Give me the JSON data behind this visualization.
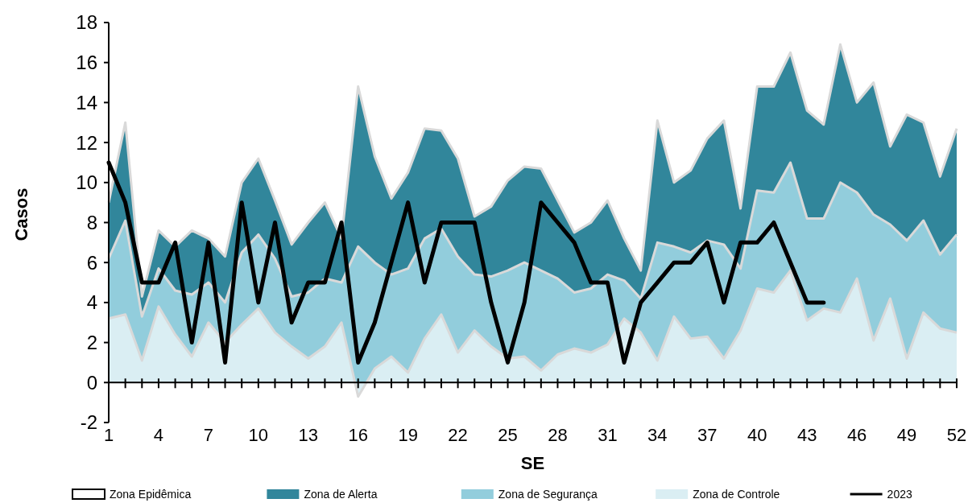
{
  "chart_data": {
    "type": "area",
    "xlabel": "SE",
    "ylabel": "Casos",
    "x": [
      1,
      2,
      3,
      4,
      5,
      6,
      7,
      8,
      9,
      10,
      11,
      12,
      13,
      14,
      15,
      16,
      17,
      18,
      19,
      20,
      21,
      22,
      23,
      24,
      25,
      26,
      27,
      28,
      29,
      30,
      31,
      32,
      33,
      34,
      35,
      36,
      37,
      38,
      39,
      40,
      41,
      42,
      43,
      44,
      45,
      46,
      47,
      48,
      49,
      50,
      51,
      52
    ],
    "xlim": [
      1,
      52
    ],
    "xticks": [
      1,
      {
        "value": 2,
        "label": null
      },
      {
        "value": 3,
        "label": null
      },
      4,
      {
        "value": 5,
        "label": null
      },
      {
        "value": 6,
        "label": null
      },
      7,
      {
        "value": 8,
        "label": null
      },
      {
        "value": 9,
        "label": null
      },
      10,
      {
        "value": 11,
        "label": null
      },
      {
        "value": 12,
        "label": null
      },
      13,
      {
        "value": 14,
        "label": null
      },
      {
        "value": 15,
        "label": null
      },
      16,
      {
        "value": 17,
        "label": null
      },
      {
        "value": 18,
        "label": null
      },
      19,
      {
        "value": 20,
        "label": null
      },
      {
        "value": 21,
        "label": null
      },
      22,
      {
        "value": 23,
        "label": null
      },
      {
        "value": 24,
        "label": null
      },
      25,
      {
        "value": 26,
        "label": null
      },
      {
        "value": 27,
        "label": null
      },
      28,
      {
        "value": 29,
        "label": null
      },
      {
        "value": 30,
        "label": null
      },
      31,
      {
        "value": 32,
        "label": null
      },
      {
        "value": 33,
        "label": null
      },
      34,
      {
        "value": 35,
        "label": null
      },
      {
        "value": 36,
        "label": null
      },
      37,
      {
        "value": 38,
        "label": null
      },
      {
        "value": 39,
        "label": null
      },
      40,
      {
        "value": 41,
        "label": null
      },
      {
        "value": 42,
        "label": null
      },
      43,
      {
        "value": 44,
        "label": null
      },
      {
        "value": 45,
        "label": null
      },
      46,
      {
        "value": 47,
        "label": null
      },
      {
        "value": 48,
        "label": null
      },
      49,
      {
        "value": 50,
        "label": null
      },
      {
        "value": 51,
        "label": null
      },
      52
    ],
    "ylim": [
      -2,
      18
    ],
    "yticks": [
      -2,
      0,
      2,
      4,
      6,
      8,
      10,
      12,
      14,
      16,
      18
    ],
    "grid": false,
    "legend": "bottom",
    "series": [
      {
        "name": "Zona Epidêmica",
        "color": "#ffffff",
        "values": [
          null,
          null,
          null,
          null,
          null,
          null,
          null,
          null,
          null,
          null,
          null,
          null,
          null,
          null,
          null,
          null,
          null,
          null,
          null,
          null,
          null,
          null,
          null,
          null,
          null,
          null,
          null,
          null,
          null,
          null,
          null,
          null,
          null,
          null,
          null,
          null,
          null,
          null,
          null,
          null,
          null,
          null,
          null,
          null,
          null,
          null,
          null,
          null,
          null,
          null,
          null,
          null
        ]
      },
      {
        "name": "Zona de Alerta",
        "color": "#31869b",
        "values": [
          9,
          13,
          4.3,
          7.6,
          6.8,
          7.6,
          7.2,
          6.3,
          10,
          11.2,
          9.1,
          6.9,
          8,
          9,
          7.2,
          14.8,
          11.3,
          9.2,
          10.5,
          12.7,
          12.6,
          11.2,
          8.3,
          8.8,
          10.1,
          10.8,
          10.7,
          9.1,
          7.5,
          8,
          9.1,
          7.2,
          5.6,
          13.1,
          10,
          10.6,
          12.2,
          13.1,
          8.7,
          14.8,
          14.8,
          16.5,
          13.6,
          12.9,
          16.9,
          14,
          15,
          11.8,
          13.4,
          13,
          10.3,
          12.7
        ]
      },
      {
        "name": "Zona de Segurança",
        "color": "#92cddc",
        "values": [
          6.2,
          8.1,
          3.3,
          5.7,
          4.6,
          4.4,
          5,
          4,
          6.5,
          7.4,
          6.2,
          4.3,
          4.5,
          5.2,
          5,
          6.8,
          6,
          5.4,
          5.7,
          7.2,
          7.7,
          6.3,
          5.4,
          5.3,
          5.6,
          6,
          5.6,
          5.2,
          4.5,
          4.7,
          5.4,
          5.1,
          4.2,
          7,
          6.8,
          6.5,
          7.1,
          6.9,
          5.7,
          9.6,
          9.5,
          11,
          8.2,
          8.2,
          10,
          9.5,
          8.4,
          7.9,
          7.1,
          8.1,
          6.4,
          7.4
        ]
      },
      {
        "name": "Zona de Controle",
        "color": "#daeef3",
        "values": [
          3.2,
          3.4,
          1.1,
          3.8,
          2.4,
          1.3,
          3,
          2,
          2.9,
          3.7,
          2.5,
          1.8,
          1.2,
          1.8,
          3,
          -0.7,
          0.7,
          1.3,
          0.5,
          2.2,
          3.4,
          1.5,
          2.6,
          1.8,
          1.2,
          1.3,
          0.6,
          1.4,
          1.7,
          1.5,
          1.9,
          3.2,
          2.5,
          1.1,
          3.3,
          2.2,
          2.3,
          1.2,
          2.6,
          4.7,
          4.5,
          5.6,
          3.1,
          3.7,
          3.5,
          5.2,
          2.1,
          4.2,
          1.2,
          3.5,
          2.7,
          2.5
        ]
      },
      {
        "name": "2023",
        "type": "line",
        "color": "#000000",
        "values": [
          11,
          9,
          5,
          5,
          7,
          2,
          7,
          1,
          9,
          4,
          8,
          3,
          5,
          5,
          8,
          1,
          3,
          6,
          9,
          5,
          8,
          8,
          8,
          4,
          1,
          4,
          9,
          8,
          7,
          5,
          5,
          1,
          4,
          5,
          6,
          6,
          7,
          4,
          7,
          7,
          8,
          6,
          4,
          4,
          null,
          null,
          null,
          null,
          null,
          null,
          null,
          null
        ]
      }
    ]
  }
}
